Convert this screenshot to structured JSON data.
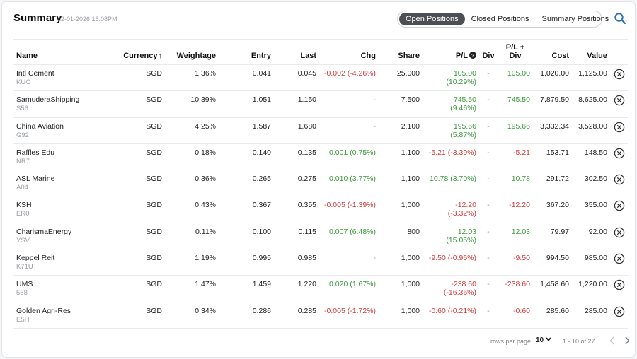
{
  "header": {
    "title": "Summary",
    "timestamp": "12-01-2026 16:08PM",
    "tabs": [
      "Open Positions",
      "Closed Positions",
      "Summary Positions"
    ],
    "active_tab": "Open Positions"
  },
  "columns": {
    "name": "Name",
    "currency": "Currency",
    "weightage": "Weightage",
    "entry": "Entry",
    "last": "Last",
    "chg": "Chg",
    "share": "Share",
    "pl": "P/L",
    "div": "Div",
    "pl_div_1": "P/L +",
    "pl_div_2": "Div",
    "cost": "Cost",
    "value": "Value"
  },
  "rows": [
    {
      "name": "Intl Cement",
      "code": "KUO",
      "currency": "SGD",
      "weightage": "1.36%",
      "entry": "0.041",
      "last": "0.045",
      "chg": "-0.002 (-4.26%)",
      "share": "25,000",
      "pl_1": "105.00",
      "pl_2": "(10.29%)",
      "div": "-",
      "pl_div": "105.00",
      "cost": "1,020.00",
      "value": "1,125.00"
    },
    {
      "name": "SamuderaShipping",
      "code": "S56",
      "currency": "SGD",
      "weightage": "10.39%",
      "entry": "1.051",
      "last": "1.150",
      "chg": "-",
      "share": "7,500",
      "pl_1": "745.50",
      "pl_2": "(9.46%)",
      "div": "-",
      "pl_div": "745.50",
      "cost": "7,879.50",
      "value": "8,625.00"
    },
    {
      "name": "China Aviation",
      "code": "G92",
      "currency": "SGD",
      "weightage": "4.25%",
      "entry": "1.587",
      "last": "1.680",
      "chg": "-",
      "share": "2,100",
      "pl_1": "195.66",
      "pl_2": "(5.87%)",
      "div": "-",
      "pl_div": "195.66",
      "cost": "3,332.34",
      "value": "3,528.00"
    },
    {
      "name": "Raffles Edu",
      "code": "NR7",
      "currency": "SGD",
      "weightage": "0.18%",
      "entry": "0.140",
      "last": "0.135",
      "chg": "0.001 (0.75%)",
      "share": "1,100",
      "pl_1": "-5.21 (-3.39%)",
      "pl_2": "",
      "div": "-",
      "pl_div": "-5.21",
      "cost": "153.71",
      "value": "148.50"
    },
    {
      "name": "ASL Marine",
      "code": "A04",
      "currency": "SGD",
      "weightage": "0.36%",
      "entry": "0.265",
      "last": "0.275",
      "chg": "0.010 (3.77%)",
      "share": "1,100",
      "pl_1": "10.78 (3.70%)",
      "pl_2": "",
      "div": "-",
      "pl_div": "10.78",
      "cost": "291.72",
      "value": "302.50"
    },
    {
      "name": "KSH",
      "code": "ER0",
      "currency": "SGD",
      "weightage": "0.43%",
      "entry": "0.367",
      "last": "0.355",
      "chg": "-0.005 (-1.39%)",
      "share": "1,000",
      "pl_1": "-12.20",
      "pl_2": "(-3.32%)",
      "div": "-",
      "pl_div": "-12.20",
      "cost": "367.20",
      "value": "355.00"
    },
    {
      "name": "CharismaEnergy",
      "code": "YSV",
      "currency": "SGD",
      "weightage": "0.11%",
      "entry": "0.100",
      "last": "0.115",
      "chg": "0.007 (6.48%)",
      "share": "800",
      "pl_1": "12.03",
      "pl_2": "(15.05%)",
      "div": "-",
      "pl_div": "12.03",
      "cost": "79.97",
      "value": "92.00"
    },
    {
      "name": "Keppel Reit",
      "code": "K71U",
      "currency": "SGD",
      "weightage": "1.19%",
      "entry": "0.995",
      "last": "0.985",
      "chg": "-",
      "share": "1,000",
      "pl_1": "-9.50 (-0.96%)",
      "pl_2": "",
      "div": "-",
      "pl_div": "-9.50",
      "cost": "994.50",
      "value": "985.00"
    },
    {
      "name": "UMS",
      "code": "558",
      "currency": "SGD",
      "weightage": "1.47%",
      "entry": "1.459",
      "last": "1.220",
      "chg": "0.020 (1.67%)",
      "share": "1,000",
      "pl_1": "-238.60",
      "pl_2": "(-16.36%)",
      "div": "-",
      "pl_div": "-238.60",
      "cost": "1,458.60",
      "value": "1,220.00"
    },
    {
      "name": "Golden Agri-Res",
      "code": "E5H",
      "currency": "SGD",
      "weightage": "0.34%",
      "entry": "0.286",
      "last": "0.285",
      "chg": "-0.005 (-1.72%)",
      "share": "1,000",
      "pl_1": "-0.60 (-0.21%)",
      "pl_2": "",
      "div": "-",
      "pl_div": "-0.60",
      "cost": "285.60",
      "value": "285.00"
    }
  ],
  "pager": {
    "rows_per_page_label": "rows per page",
    "rows_per_page": "10",
    "range": "1 - 10 of 27"
  },
  "colors": {
    "positive": "#3a9a3a",
    "negative": "#d33a3a",
    "accent": "#2f6fb5",
    "active_tab": "#4c4f54"
  },
  "icons": {
    "search": "search-icon",
    "close": "close-icon",
    "info": "info-icon",
    "sort": "arrow-up-icon",
    "dropdown": "chevron-down-icon",
    "prev": "chevron-left-icon",
    "next": "chevron-right-icon"
  }
}
